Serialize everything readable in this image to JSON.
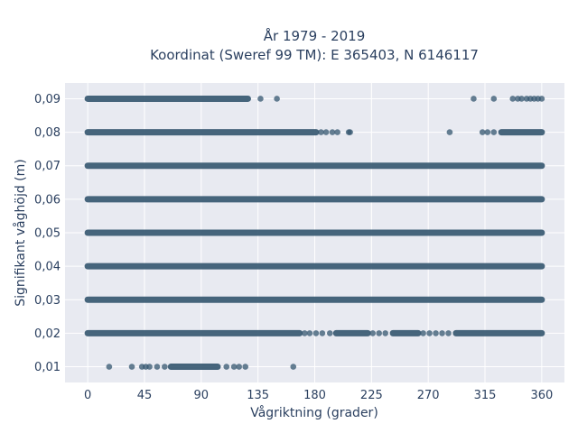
{
  "chart_data": {
    "type": "scatter",
    "title": "År 1979 - 2019",
    "subtitle": "Koordinat (Sweref 99 TM): E 365403, N 6146117",
    "xlabel": "Vågriktning (grader)",
    "ylabel": "Signifikant våghöjd (m)",
    "xlim": [
      -18,
      378
    ],
    "ylim": [
      0.0053,
      0.0947
    ],
    "x_ticks": [
      0,
      45,
      90,
      135,
      180,
      225,
      270,
      315,
      360
    ],
    "x_tick_labels": [
      "0",
      "45",
      "90",
      "135",
      "180",
      "225",
      "270",
      "315",
      "360"
    ],
    "y_ticks": [
      0.01,
      0.02,
      0.03,
      0.04,
      0.05,
      0.06,
      0.07,
      0.08,
      0.09
    ],
    "y_tick_labels": [
      "0,01",
      "0,02",
      "0,03",
      "0,04",
      "0,05",
      "0,06",
      "0,07",
      "0,08",
      "0,09"
    ],
    "grid": true,
    "marker_color": "#34566f",
    "plot_bg": "#e8eaf1",
    "rows": [
      {
        "y": 0.09,
        "segments": [
          [
            0,
            127
          ]
        ],
        "points": [
          137,
          150,
          306,
          322,
          337,
          341,
          344,
          348,
          351,
          354,
          357,
          360
        ]
      },
      {
        "y": 0.08,
        "segments": [
          [
            0,
            181
          ],
          [
            328,
            360
          ]
        ],
        "points": [
          185,
          189,
          194,
          198,
          207,
          208,
          287,
          313,
          317,
          322
        ]
      },
      {
        "y": 0.07,
        "segments": [
          [
            0,
            360
          ]
        ],
        "points": []
      },
      {
        "y": 0.06,
        "segments": [
          [
            0,
            360
          ]
        ],
        "points": []
      },
      {
        "y": 0.05,
        "segments": [
          [
            0,
            360
          ]
        ],
        "points": []
      },
      {
        "y": 0.04,
        "segments": [
          [
            0,
            360
          ]
        ],
        "points": []
      },
      {
        "y": 0.03,
        "segments": [
          [
            0,
            360
          ]
        ],
        "points": []
      },
      {
        "y": 0.02,
        "segments": [
          [
            0,
            168
          ],
          [
            197,
            222
          ],
          [
            242,
            262
          ],
          [
            292,
            360
          ]
        ],
        "points": [
          172,
          176,
          181,
          186,
          192,
          226,
          231,
          236,
          266,
          271,
          276,
          281,
          286
        ]
      },
      {
        "y": 0.01,
        "segments": [
          [
            66,
            103
          ]
        ],
        "points": [
          17,
          35,
          43,
          46,
          49,
          55,
          61,
          110,
          116,
          120,
          125,
          163
        ]
      }
    ]
  }
}
